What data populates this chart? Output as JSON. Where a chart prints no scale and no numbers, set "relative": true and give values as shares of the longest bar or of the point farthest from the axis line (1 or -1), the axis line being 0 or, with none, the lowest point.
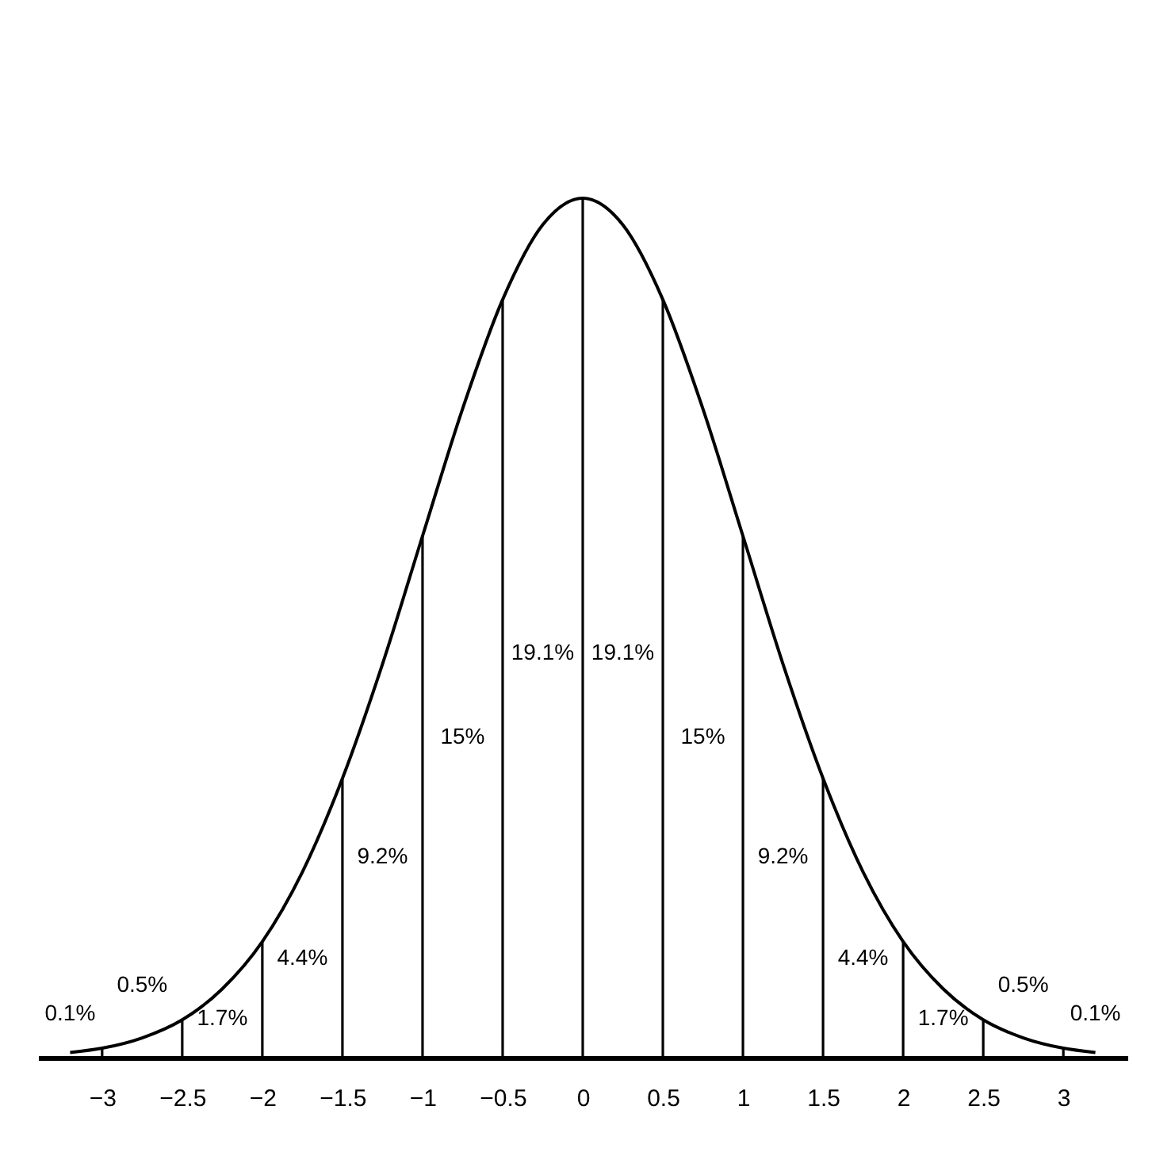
{
  "chart_data": {
    "type": "line",
    "relative": true,
    "tick_labels": "x",
    "xlim": [
      -3.4,
      3.4
    ],
    "xticks": [
      -3,
      -2.5,
      -2,
      -1.5,
      -1,
      -0.5,
      0,
      0.5,
      1,
      1.5,
      2,
      2.5,
      3
    ],
    "series": [
      {
        "color": "#000000",
        "x": [
          -3.2,
          -3,
          -2.75,
          -2.5,
          -2.25,
          -2,
          -1.75,
          -1.5,
          -1.25,
          -1,
          -0.75,
          -0.5,
          -0.25,
          0,
          0.25,
          0.5,
          0.75,
          1,
          1.25,
          1.5,
          1.75,
          2,
          2.25,
          2.5,
          2.75,
          3,
          3.2
        ],
        "values": [
          0.006,
          0.011,
          0.023,
          0.044,
          0.08,
          0.135,
          0.216,
          0.325,
          0.458,
          0.607,
          0.755,
          0.882,
          0.969,
          1,
          0.969,
          0.882,
          0.755,
          0.607,
          0.458,
          0.325,
          0.216,
          0.135,
          0.08,
          0.044,
          0.023,
          0.011,
          0.006
        ]
      },
      {
        "type": "bar",
        "color": "#000000",
        "x": [
          -3,
          -2.5,
          -2,
          -1.5,
          -1,
          -0.5,
          0,
          0.5,
          1,
          1.5,
          2,
          2.5,
          3
        ],
        "values": [
          0.011,
          0.044,
          0.135,
          0.325,
          0.607,
          0.882,
          1,
          0.882,
          0.607,
          0.325,
          0.135,
          0.044,
          0.011
        ]
      }
    ],
    "annotations": [
      "0.1%",
      "0.5%",
      "1.7%",
      "4.4%",
      "9.2%",
      "15%",
      "19.1%",
      "19.1%",
      "15%",
      "9.2%",
      "4.4%",
      "1.7%",
      "0.5%",
      "0.1%"
    ]
  }
}
